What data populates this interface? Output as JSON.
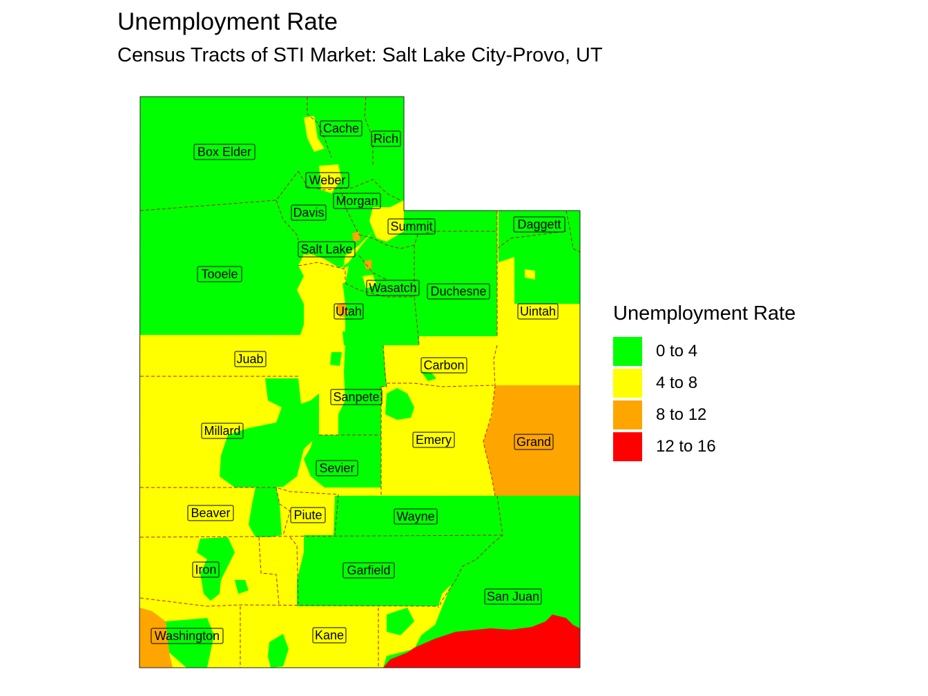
{
  "title": "Unemployment Rate",
  "subtitle": "Census Tracts of STI Market: Salt Lake City-Provo, UT",
  "legend": {
    "title": "Unemployment Rate",
    "items": [
      {
        "label": "0 to 4",
        "color": "#00ff00"
      },
      {
        "label": "4 to 8",
        "color": "#ffff00"
      },
      {
        "label": "8 to 12",
        "color": "#ffa500"
      },
      {
        "label": "12 to 16",
        "color": "#ff0000"
      }
    ]
  },
  "border_color": "#b22222",
  "counties": [
    {
      "name": "Cache",
      "category": "0 to 4"
    },
    {
      "name": "Rich",
      "category": "0 to 4"
    },
    {
      "name": "Box Elder",
      "category": "0 to 4"
    },
    {
      "name": "Weber",
      "category": "0 to 4"
    },
    {
      "name": "Morgan",
      "category": "0 to 4"
    },
    {
      "name": "Davis",
      "category": "0 to 4"
    },
    {
      "name": "Summit",
      "category": "0 to 4"
    },
    {
      "name": "Daggett",
      "category": "0 to 4"
    },
    {
      "name": "Salt Lake",
      "category": "0 to 4"
    },
    {
      "name": "Tooele",
      "category": "0 to 4"
    },
    {
      "name": "Wasatch",
      "category": "0 to 4"
    },
    {
      "name": "Duchesne",
      "category": "0 to 4"
    },
    {
      "name": "Utah",
      "category": "0 to 4"
    },
    {
      "name": "Uintah",
      "category": "4 to 8"
    },
    {
      "name": "Juab",
      "category": "4 to 8"
    },
    {
      "name": "Carbon",
      "category": "4 to 8"
    },
    {
      "name": "Sanpete",
      "category": "0 to 4"
    },
    {
      "name": "Millard",
      "category": "4 to 8"
    },
    {
      "name": "Emery",
      "category": "4 to 8"
    },
    {
      "name": "Grand",
      "category": "8 to 12"
    },
    {
      "name": "Sevier",
      "category": "0 to 4"
    },
    {
      "name": "Beaver",
      "category": "4 to 8"
    },
    {
      "name": "Piute",
      "category": "4 to 8"
    },
    {
      "name": "Wayne",
      "category": "0 to 4"
    },
    {
      "name": "Iron",
      "category": "4 to 8"
    },
    {
      "name": "Garfield",
      "category": "0 to 4"
    },
    {
      "name": "San Juan",
      "category": "0 to 4"
    },
    {
      "name": "Washington",
      "category": "4 to 8"
    },
    {
      "name": "Kane",
      "category": "4 to 8"
    }
  ]
}
